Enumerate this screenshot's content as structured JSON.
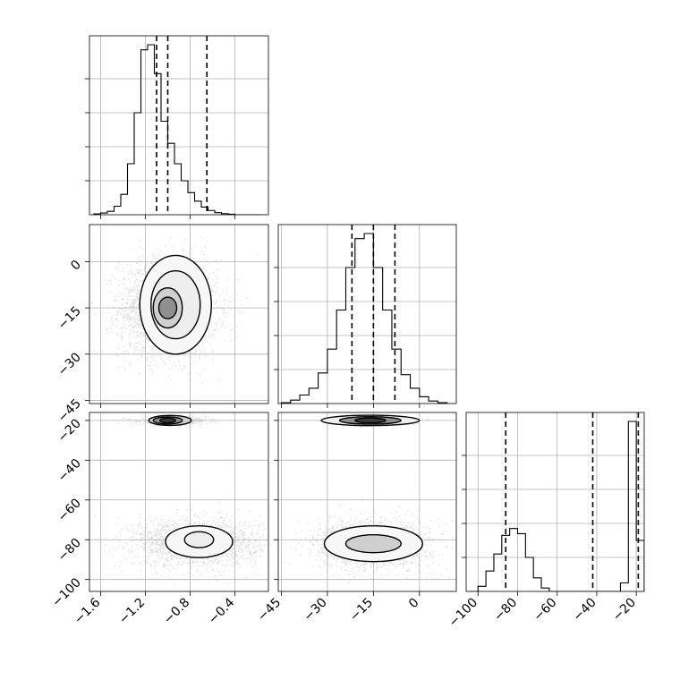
{
  "chart_data": {
    "type": "corner",
    "parameters": [
      {
        "range": [
          -1.7,
          -0.1
        ],
        "ticks": [
          -1.6,
          -1.2,
          -0.8,
          -0.4
        ],
        "tick_labels": [
          "−1.6",
          "−1.2",
          "−0.8",
          "−0.4"
        ]
      },
      {
        "range": [
          -46,
          12
        ],
        "ticks": [
          -45,
          -30,
          -15,
          0
        ],
        "tick_labels": [
          "−45",
          "−30",
          "−15",
          "0"
        ]
      },
      {
        "range": [
          -106,
          -16
        ],
        "ticks": [
          -100,
          -80,
          -60,
          -40,
          -20
        ],
        "tick_labels": [
          "−100",
          "−80",
          "−60",
          "−40",
          "−20"
        ]
      }
    ],
    "row_tick_labels": {
      "row2_param2": [
        "0",
        "−15",
        "−30",
        "−45"
      ],
      "row3_param3": [
        "−20",
        "−40",
        "−60",
        "−80",
        "−100"
      ]
    },
    "histograms": [
      {
        "param": 1,
        "bin_edges": [
          -1.66,
          -1.6,
          -1.54,
          -1.48,
          -1.42,
          -1.36,
          -1.3,
          -1.24,
          -1.18,
          -1.12,
          -1.06,
          -1.0,
          -0.94,
          -0.88,
          -0.82,
          -0.76,
          -0.7,
          -0.64,
          -0.58,
          -0.52,
          -0.46,
          -0.4,
          -0.34,
          -0.28,
          -0.22,
          -0.16
        ],
        "counts": [
          0.005,
          0.01,
          0.02,
          0.05,
          0.12,
          0.3,
          0.6,
          0.97,
          1.0,
          0.83,
          0.55,
          0.42,
          0.3,
          0.2,
          0.13,
          0.08,
          0.045,
          0.025,
          0.012,
          0.006,
          0.003,
          0.0,
          0.0,
          0.0,
          0.0
        ],
        "quantiles": [
          -1.1,
          -1.0,
          -0.65
        ]
      },
      {
        "param": 2,
        "bin_edges": [
          -45,
          -42,
          -39,
          -36,
          -33,
          -30,
          -27,
          -24,
          -21,
          -18,
          -15,
          -12,
          -9,
          -6,
          -3,
          0,
          3,
          6,
          9
        ],
        "counts": [
          0.005,
          0.02,
          0.05,
          0.09,
          0.18,
          0.32,
          0.55,
          0.8,
          0.97,
          1.0,
          0.8,
          0.55,
          0.32,
          0.17,
          0.09,
          0.04,
          0.015,
          0.005
        ],
        "quantiles": [
          -22,
          -15,
          -8
        ]
      },
      {
        "param": 3,
        "bin_edges": [
          -104,
          -100,
          -96,
          -92,
          -88,
          -84,
          -80,
          -76,
          -72,
          -68,
          -64,
          -60,
          -56,
          -52,
          -48,
          -44,
          -40,
          -36,
          -32,
          -28,
          -24,
          -20,
          -16
        ],
        "counts": [
          0.0,
          0.03,
          0.12,
          0.22,
          0.33,
          0.37,
          0.34,
          0.2,
          0.08,
          0.02,
          0.0,
          0.0,
          0.0,
          0.0,
          0.0,
          0.0,
          0.0,
          0.0,
          0.0,
          0.05,
          1.0,
          0.3
        ],
        "quantiles": [
          -86,
          -42,
          -19
        ]
      }
    ],
    "scatter_panels": [
      {
        "x_param": 1,
        "y_param": 2,
        "clusters": [
          {
            "center": [
              -1.0,
              -15
            ],
            "spread": [
              0.22,
              8
            ],
            "weight": 1.0
          }
        ],
        "contours": [
          {
            "center": [
              -1.0,
              -15
            ],
            "radii": [
              0.08,
              3.5
            ]
          },
          {
            "center": [
              -1.0,
              -15
            ],
            "radii": [
              0.13,
              6.5
            ]
          },
          {
            "center": [
              -0.93,
              -14
            ],
            "radii": [
              0.22,
              11
            ]
          },
          {
            "center": [
              -0.93,
              -14
            ],
            "radii": [
              0.32,
              16
            ]
          }
        ]
      },
      {
        "x_param": 1,
        "y_param": 3,
        "clusters": [
          {
            "center": [
              -0.95,
              -20
            ],
            "spread": [
              0.15,
              1.0
            ],
            "weight": 0.25
          },
          {
            "center": [
              -0.75,
              -81
            ],
            "spread": [
              0.28,
              6
            ],
            "weight": 0.75
          }
        ],
        "contours": [
          {
            "center": [
              -1.0,
              -20
            ],
            "radii": [
              0.07,
              1.2
            ]
          },
          {
            "center": [
              -1.0,
              -20
            ],
            "radii": [
              0.13,
              1.8
            ]
          },
          {
            "center": [
              -0.98,
              -20
            ],
            "radii": [
              0.19,
              2.5
            ]
          },
          {
            "center": [
              -0.72,
              -80
            ],
            "radii": [
              0.13,
              4
            ]
          },
          {
            "center": [
              -0.72,
              -81
            ],
            "radii": [
              0.3,
              8
            ]
          }
        ]
      },
      {
        "x_param": 2,
        "y_param": 3,
        "clusters": [
          {
            "center": [
              -15,
              -20
            ],
            "spread": [
              6,
              1.0
            ],
            "weight": 0.25
          },
          {
            "center": [
              -15,
              -82
            ],
            "spread": [
              9,
              6
            ],
            "weight": 0.75
          }
        ],
        "contours": [
          {
            "center": [
              -16,
              -20
            ],
            "radii": [
              5,
              1.2
            ]
          },
          {
            "center": [
              -16,
              -20
            ],
            "radii": [
              10,
              1.9
            ]
          },
          {
            "center": [
              -16,
              -20
            ],
            "radii": [
              16,
              2.6
            ]
          },
          {
            "center": [
              -15,
              -82
            ],
            "radii": [
              9,
              4.5
            ]
          },
          {
            "center": [
              -15,
              -82
            ],
            "radii": [
              16,
              9
            ]
          }
        ]
      }
    ]
  }
}
